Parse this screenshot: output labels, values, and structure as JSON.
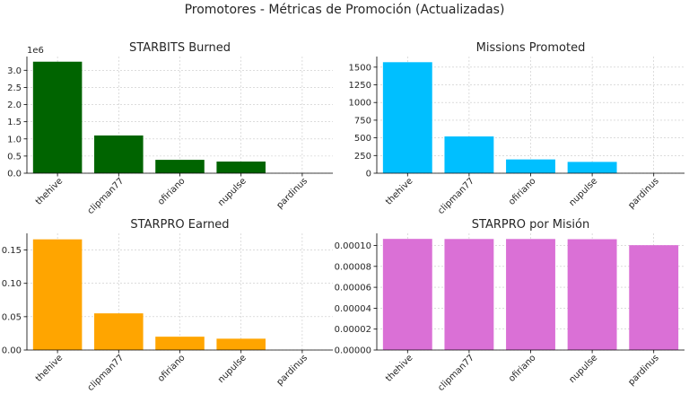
{
  "suptitle": "Promotores - Métricas de Promoción (Actualizadas)",
  "chart_data": [
    {
      "type": "bar",
      "title": "STARBITS Burned",
      "categories": [
        "thehive",
        "clipman77",
        "ofiriano",
        "nupulse",
        "pardinus"
      ],
      "values": [
        3250000,
        1100000,
        390000,
        340000,
        0
      ],
      "color": "#006400",
      "offset_label": "1e6",
      "ylim": [
        0,
        3400000
      ],
      "yticks": [
        0,
        500000,
        1000000,
        1500000,
        2000000,
        2500000,
        3000000
      ],
      "ytick_labels": [
        "0.0",
        "0.5",
        "1.0",
        "1.5",
        "2.0",
        "2.5",
        "3.0"
      ],
      "grid": true
    },
    {
      "type": "bar",
      "title": "Missions Promoted",
      "categories": [
        "thehive",
        "clipman77",
        "ofiriano",
        "nupulse",
        "pardinus"
      ],
      "values": [
        1570,
        520,
        195,
        160,
        0
      ],
      "color": "#00BFFF",
      "ylim": [
        0,
        1650
      ],
      "yticks": [
        0,
        250,
        500,
        750,
        1000,
        1250,
        1500
      ],
      "ytick_labels": [
        "0",
        "250",
        "500",
        "750",
        "1000",
        "1250",
        "1500"
      ],
      "grid": true
    },
    {
      "type": "bar",
      "title": "STARPRO Earned",
      "categories": [
        "thehive",
        "clipman77",
        "ofiriano",
        "nupulse",
        "pardinus"
      ],
      "values": [
        0.166,
        0.055,
        0.02,
        0.017,
        0
      ],
      "color": "#FFA500",
      "ylim": [
        0,
        0.175
      ],
      "yticks": [
        0,
        0.05,
        0.1,
        0.15
      ],
      "ytick_labels": [
        "0.00",
        "0.05",
        "0.10",
        "0.15"
      ],
      "grid": true
    },
    {
      "type": "bar",
      "title": "STARPRO por Misión",
      "categories": [
        "thehive",
        "clipman77",
        "ofiriano",
        "nupulse",
        "pardinus"
      ],
      "values": [
        0.0001063,
        0.0001062,
        0.0001062,
        0.000106,
        0.0001003
      ],
      "color": "#DA70D6",
      "ylim": [
        0,
        0.0001116
      ],
      "yticks": [
        0,
        2e-05,
        4e-05,
        6e-05,
        8e-05,
        0.0001
      ],
      "ytick_labels": [
        "0.00000",
        "0.00002",
        "0.00004",
        "0.00006",
        "0.00008",
        "0.00010"
      ],
      "grid": true
    }
  ]
}
